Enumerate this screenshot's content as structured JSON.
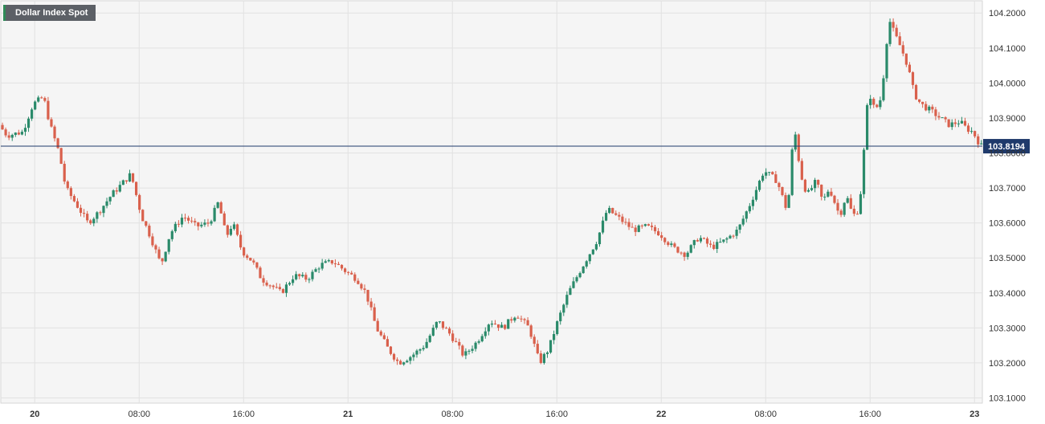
{
  "chart_data": {
    "type": "candlestick",
    "title": "Dollar Index Spot",
    "current_price": 103.8194,
    "current_price_label": "103.8194",
    "ylim": [
      103.085,
      104.235
    ],
    "y_ticks": [
      {
        "value": 104.2,
        "label": "104.2000"
      },
      {
        "value": 104.1,
        "label": "104.1000"
      },
      {
        "value": 104.0,
        "label": "104.0000"
      },
      {
        "value": 103.9,
        "label": "103.9000"
      },
      {
        "value": 103.8,
        "label": "103.8000"
      },
      {
        "value": 103.7,
        "label": "103.7000"
      },
      {
        "value": 103.6,
        "label": "103.6000"
      },
      {
        "value": 103.5,
        "label": "103.5000"
      },
      {
        "value": 103.4,
        "label": "103.4000"
      },
      {
        "value": 103.3,
        "label": "103.3000"
      },
      {
        "value": 103.2,
        "label": "103.2000"
      },
      {
        "value": 103.1,
        "label": "103.1000"
      }
    ],
    "x_ticks": [
      {
        "hours": 0,
        "label": "20",
        "day": true
      },
      {
        "hours": 8,
        "label": "08:00",
        "day": false
      },
      {
        "hours": 16,
        "label": "16:00",
        "day": false
      },
      {
        "hours": 24,
        "label": "21",
        "day": true
      },
      {
        "hours": 32,
        "label": "08:00",
        "day": false
      },
      {
        "hours": 40,
        "label": "16:00",
        "day": false
      },
      {
        "hours": 48,
        "label": "22",
        "day": true
      },
      {
        "hours": 56,
        "label": "08:00",
        "day": false
      },
      {
        "hours": 64,
        "label": "16:00",
        "day": false
      },
      {
        "hours": 72,
        "label": "23",
        "day": true
      }
    ],
    "x_range_hours": [
      -2.6,
      72.6
    ],
    "interval_hours": 0.25,
    "key_points": [
      [
        -2.6,
        103.88
      ],
      [
        -2.0,
        103.85
      ],
      [
        -0.8,
        103.86
      ],
      [
        0,
        103.94
      ],
      [
        0.8,
        103.96
      ],
      [
        1.3,
        103.88
      ],
      [
        2.0,
        103.8
      ],
      [
        2.5,
        103.7
      ],
      [
        3.2,
        103.66
      ],
      [
        4.2,
        103.6
      ],
      [
        5.0,
        103.63
      ],
      [
        6.0,
        103.68
      ],
      [
        7.0,
        103.72
      ],
      [
        7.5,
        103.74
      ],
      [
        8.3,
        103.62
      ],
      [
        9.0,
        103.56
      ],
      [
        9.8,
        103.48
      ],
      [
        10.5,
        103.57
      ],
      [
        11.5,
        103.62
      ],
      [
        12.5,
        103.59
      ],
      [
        13.5,
        103.6
      ],
      [
        14.2,
        103.66
      ],
      [
        14.8,
        103.56
      ],
      [
        15.3,
        103.6
      ],
      [
        16.0,
        103.52
      ],
      [
        16.8,
        103.49
      ],
      [
        17.5,
        103.44
      ],
      [
        18.3,
        103.42
      ],
      [
        19.0,
        103.4
      ],
      [
        20.0,
        103.45
      ],
      [
        21.0,
        103.44
      ],
      [
        22.0,
        103.48
      ],
      [
        23.0,
        103.49
      ],
      [
        24.0,
        103.46
      ],
      [
        24.8,
        103.44
      ],
      [
        25.5,
        103.4
      ],
      [
        26.3,
        103.3
      ],
      [
        27.2,
        103.24
      ],
      [
        28.0,
        103.2
      ],
      [
        29.0,
        103.22
      ],
      [
        30.0,
        103.25
      ],
      [
        31.0,
        103.32
      ],
      [
        32.0,
        103.28
      ],
      [
        33.0,
        103.22
      ],
      [
        34.0,
        103.26
      ],
      [
        35.0,
        103.32
      ],
      [
        36.0,
        103.3
      ],
      [
        37.0,
        103.34
      ],
      [
        38.0,
        103.3
      ],
      [
        38.8,
        103.2
      ],
      [
        39.5,
        103.24
      ],
      [
        40.2,
        103.32
      ],
      [
        41.0,
        103.4
      ],
      [
        42.0,
        103.47
      ],
      [
        43.2,
        103.55
      ],
      [
        44.0,
        103.64
      ],
      [
        45.0,
        103.61
      ],
      [
        46.0,
        103.58
      ],
      [
        47.0,
        103.59
      ],
      [
        48.0,
        103.57
      ],
      [
        49.0,
        103.53
      ],
      [
        50.0,
        103.51
      ],
      [
        51.0,
        103.56
      ],
      [
        52.0,
        103.53
      ],
      [
        53.0,
        103.55
      ],
      [
        54.0,
        103.58
      ],
      [
        55.0,
        103.66
      ],
      [
        56.0,
        103.75
      ],
      [
        57.0,
        103.72
      ],
      [
        57.8,
        103.63
      ],
      [
        58.3,
        103.88
      ],
      [
        58.8,
        103.74
      ],
      [
        59.3,
        103.68
      ],
      [
        60.0,
        103.72
      ],
      [
        60.5,
        103.66
      ],
      [
        61.0,
        103.7
      ],
      [
        61.8,
        103.62
      ],
      [
        62.3,
        103.68
      ],
      [
        62.8,
        103.62
      ],
      [
        63.3,
        103.64
      ],
      [
        63.6,
        103.78
      ],
      [
        64.0,
        103.98
      ],
      [
        64.5,
        103.92
      ],
      [
        65.0,
        103.96
      ],
      [
        65.4,
        104.12
      ],
      [
        65.6,
        104.18
      ],
      [
        66.0,
        104.14
      ],
      [
        66.5,
        104.1
      ],
      [
        67.0,
        104.05
      ],
      [
        67.5,
        103.97
      ],
      [
        68.0,
        103.94
      ],
      [
        68.8,
        103.92
      ],
      [
        69.5,
        103.9
      ],
      [
        70.2,
        103.88
      ],
      [
        71.0,
        103.89
      ],
      [
        71.5,
        103.87
      ],
      [
        72.0,
        103.86
      ],
      [
        72.6,
        103.82
      ]
    ]
  }
}
